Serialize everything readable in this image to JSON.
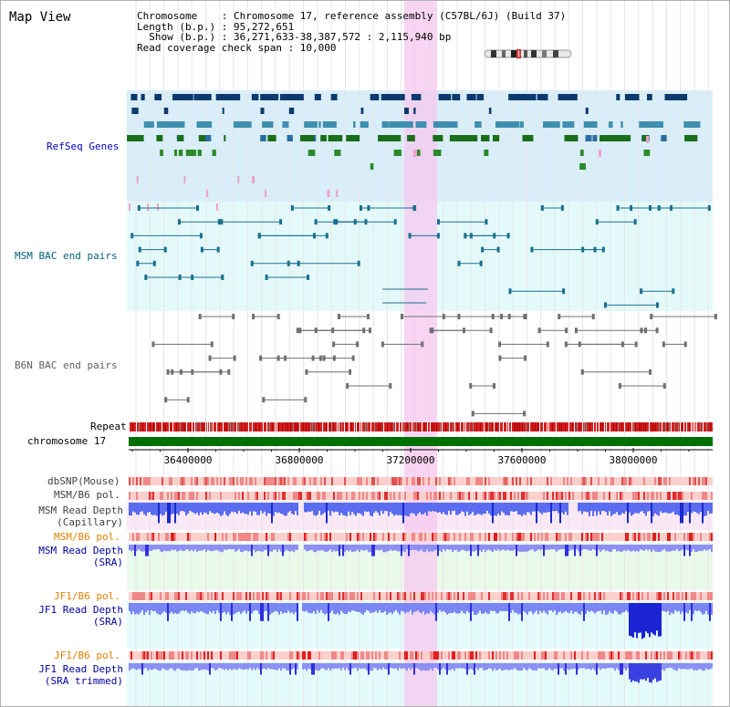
{
  "title": "Map View",
  "info": {
    "line1": "Chromosome    : Chromosome 17, reference assembly (C57BL/6J) (Build 37)",
    "line2": "Length (b.p.) : 95,272,651",
    "line3": "  Show (b.p.) : 36,271,633-38,387,572 : 2,115,940 bp",
    "line4": "Read coverage check span : 10,000"
  },
  "tracks": {
    "refseq": "RefSeq Genes",
    "msm_bac": "MSM BAC end pairs",
    "b6n_bac": "B6N BAC end pairs",
    "repeat": "Repeat",
    "chromosome": "chromosome 17",
    "dbsnp": "dbSNP(Mouse)",
    "msm_b6_pol_1": "MSM/B6 pol.",
    "msm_depth_cap_1": "MSM Read Depth",
    "msm_depth_cap_2": "(Capillary)",
    "msm_b6_pol_2": "MSM/B6 pol.",
    "msm_depth_sra_1": "MSM Read Depth",
    "msm_depth_sra_2": "(SRA)",
    "jf1_b6_pol_1": "JF1/B6 pol.",
    "jf1_depth_sra_1": "JF1 Read Depth",
    "jf1_depth_sra_2": "(SRA)",
    "jf1_b6_pol_2": "JF1/B6 pol.",
    "jf1_depth_trim_1": "JF1 Read Depth",
    "jf1_depth_trim_2": "(SRA trimmed)"
  },
  "axis": {
    "ticks": [
      "36400000",
      "36800000",
      "37200000",
      "37600000",
      "38000000"
    ]
  },
  "colors": {
    "refseq_label": "#0000c0",
    "msm_label": "#006080",
    "b6n_label": "#606060",
    "pol_label_msm": "#e08000",
    "depth_label": "#0000a0",
    "highlight": "#f7d0f0",
    "chromosome_bar": "#007000"
  }
}
